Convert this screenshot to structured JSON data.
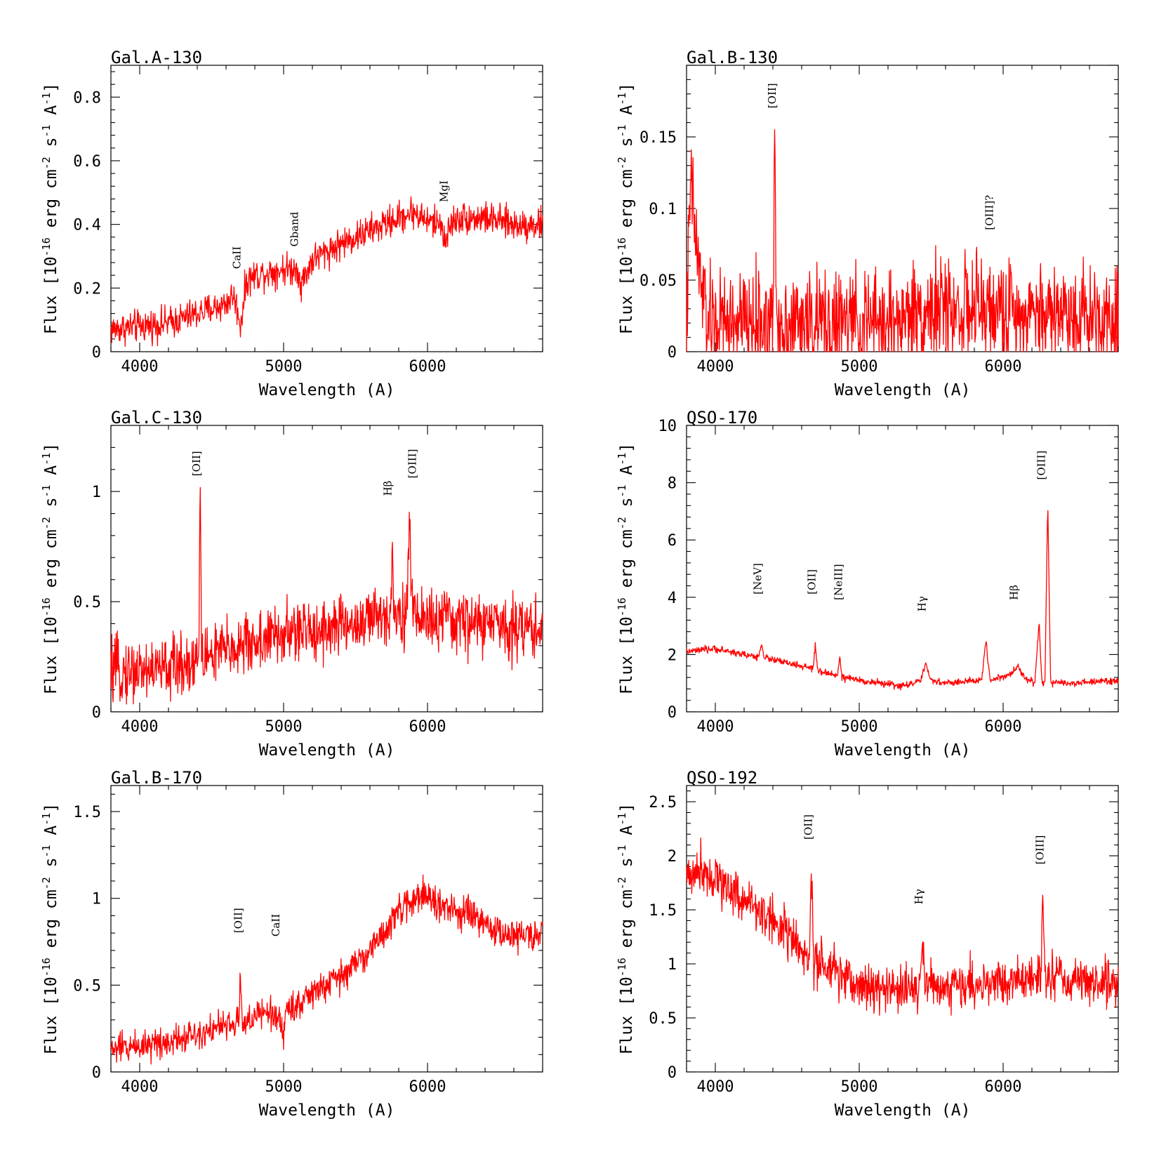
{
  "chart_data": [
    {
      "type": "line",
      "title": "Gal.A-130",
      "xlabel": "Wavelength (A)",
      "ylabel": "Flux [10^-16 erg cm^-2 s^-1 A^-1]",
      "xlim": [
        3800,
        6800
      ],
      "ylim": [
        0,
        0.9
      ],
      "xticks": [
        4000,
        5000,
        6000
      ],
      "xtick_labels": [
        "4000",
        "5000",
        "6000"
      ],
      "yticks": [
        0,
        0.2,
        0.4,
        0.6,
        0.8
      ],
      "ytick_labels": [
        "0",
        "0.2",
        "0.4",
        "0.6",
        "0.8"
      ],
      "noise": 0.025,
      "series": [
        {
          "color": "#ff0000",
          "x": [
            3800,
            4000,
            4200,
            4400,
            4600,
            4650,
            4690,
            4700,
            4740,
            4800,
            5000,
            5100,
            5120,
            5200,
            5400,
            5600,
            5800,
            5900,
            6000,
            6100,
            6130,
            6150,
            6200,
            6400,
            6600,
            6800
          ],
          "y": [
            0.07,
            0.08,
            0.09,
            0.12,
            0.15,
            0.18,
            0.11,
            0.08,
            0.22,
            0.24,
            0.26,
            0.26,
            0.21,
            0.29,
            0.34,
            0.38,
            0.42,
            0.44,
            0.41,
            0.4,
            0.34,
            0.39,
            0.42,
            0.42,
            0.4,
            0.4
          ]
        }
      ],
      "lines": [
        {
          "label": "CaII",
          "x": 4700,
          "y": 0.26
        },
        {
          "label": "Gband",
          "x": 5100,
          "y": 0.33
        },
        {
          "label": "MgI",
          "x": 6140,
          "y": 0.47
        }
      ]
    },
    {
      "type": "line",
      "title": "Gal.B-130",
      "xlabel": "Wavelength (A)",
      "ylabel": "Flux [10^-16 erg cm^-2 s^-1 A^-1]",
      "xlim": [
        3800,
        6800
      ],
      "ylim": [
        0,
        0.2
      ],
      "xticks": [
        4000,
        5000,
        6000
      ],
      "xtick_labels": [
        "4000",
        "5000",
        "6000"
      ],
      "yticks": [
        0,
        0.05,
        0.1,
        0.15
      ],
      "ytick_labels": [
        "0",
        "0.05",
        "0.1",
        "0.15"
      ],
      "noise": 0.018,
      "series": [
        {
          "color": "#ff0000",
          "x": [
            3800,
            3830,
            3880,
            3950,
            4200,
            4400,
            4415,
            4425,
            4440,
            4800,
            5200,
            5500,
            6000,
            6400,
            6800
          ],
          "y": [
            0.02,
            0.12,
            0.06,
            0.02,
            0.02,
            0.02,
            0.145,
            0.02,
            0.02,
            0.02,
            0.02,
            0.03,
            0.028,
            0.028,
            0.025
          ]
        }
      ],
      "lines": [
        {
          "label": "[OII]",
          "x": 4420,
          "y": 0.17
        },
        {
          "label": "[OIII]?",
          "x": 5930,
          "y": 0.085
        }
      ]
    },
    {
      "type": "line",
      "title": "Gal.C-130",
      "xlabel": "Wavelength (A)",
      "ylabel": "Flux [10^-16 erg cm^-2 s^-1 A^-1]",
      "xlim": [
        3800,
        6800
      ],
      "ylim": [
        0,
        1.3
      ],
      "xticks": [
        4000,
        5000,
        6000
      ],
      "xtick_labels": [
        "4000",
        "5000",
        "6000"
      ],
      "yticks": [
        0,
        0.5,
        1
      ],
      "ytick_labels": [
        "0",
        "0.5",
        "1"
      ],
      "noise": 0.07,
      "series": [
        {
          "color": "#ff0000",
          "x": [
            3800,
            4200,
            4410,
            4420,
            4430,
            4700,
            5000,
            5500,
            5740,
            5755,
            5770,
            5860,
            5875,
            5890,
            6000,
            6400,
            6800
          ],
          "y": [
            0.18,
            0.2,
            0.24,
            1.06,
            0.25,
            0.3,
            0.35,
            0.4,
            0.44,
            0.76,
            0.44,
            0.45,
            0.92,
            0.46,
            0.42,
            0.4,
            0.38
          ]
        }
      ],
      "lines": [
        {
          "label": "[OII]",
          "x": 4420,
          "y": 1.07
        },
        {
          "label": "Hβ",
          "x": 5750,
          "y": 0.98
        },
        {
          "label": "[OIII]",
          "x": 5920,
          "y": 1.06
        }
      ]
    },
    {
      "type": "line",
      "title": "QSO-170",
      "xlabel": "Wavelength (A)",
      "ylabel": "Flux [10^-16 erg cm^-2 s^-1 A^-1]",
      "xlim": [
        3800,
        6800
      ],
      "ylim": [
        0,
        10
      ],
      "xticks": [
        4000,
        5000,
        6000
      ],
      "xtick_labels": [
        "4000",
        "5000",
        "6000"
      ],
      "yticks": [
        0,
        2,
        4,
        6,
        8,
        10
      ],
      "ytick_labels": [
        "0",
        "2",
        "4",
        "6",
        "8",
        "10"
      ],
      "noise": 0.06,
      "series": [
        {
          "color": "#ff0000",
          "x": [
            3800,
            4000,
            4200,
            4300,
            4320,
            4340,
            4500,
            4680,
            4695,
            4710,
            4850,
            4865,
            4880,
            5000,
            5300,
            5430,
            5460,
            5500,
            5600,
            5850,
            5880,
            5910,
            6050,
            6100,
            6150,
            6220,
            6250,
            6270,
            6290,
            6310,
            6330,
            6500,
            6800
          ],
          "y": [
            2.1,
            2.2,
            2.0,
            1.9,
            2.4,
            1.9,
            1.7,
            1.5,
            2.4,
            1.4,
            1.3,
            1.9,
            1.2,
            1.1,
            0.9,
            1.1,
            1.65,
            1.1,
            1.0,
            1.1,
            2.5,
            1.1,
            1.3,
            1.6,
            1.2,
            1.0,
            3.1,
            1.0,
            1.0,
            7.3,
            1.0,
            1.0,
            1.1
          ]
        }
      ],
      "lines": [
        {
          "label": "[NeV]",
          "x": 4320,
          "y": 4.1
        },
        {
          "label": "[OII]",
          "x": 4695,
          "y": 4.1
        },
        {
          "label": "[NeIII]",
          "x": 4880,
          "y": 3.9
        },
        {
          "label": "Hγ",
          "x": 5460,
          "y": 3.5
        },
        {
          "label": "Hβ",
          "x": 6100,
          "y": 3.9
        },
        {
          "label": "[OIII]",
          "x": 6290,
          "y": 8.1
        }
      ]
    },
    {
      "type": "line",
      "title": "Gal.B-170",
      "xlabel": "Wavelength (A)",
      "ylabel": "Flux [10^-16 erg cm^-2 s^-1 A^-1]",
      "xlim": [
        3800,
        6800
      ],
      "ylim": [
        0,
        1.65
      ],
      "xticks": [
        4000,
        5000,
        6000
      ],
      "xtick_labels": [
        "4000",
        "5000",
        "6000"
      ],
      "yticks": [
        0,
        0.5,
        1,
        1.5
      ],
      "ytick_labels": [
        "0",
        "0.5",
        "1",
        "1.5"
      ],
      "noise": 0.045,
      "series": [
        {
          "color": "#ff0000",
          "x": [
            3800,
            4200,
            4500,
            4690,
            4700,
            4712,
            4900,
            4990,
            5000,
            5010,
            5200,
            5400,
            5600,
            5800,
            5950,
            6100,
            6300,
            6500,
            6800
          ],
          "y": [
            0.13,
            0.18,
            0.25,
            0.28,
            0.61,
            0.28,
            0.35,
            0.28,
            0.17,
            0.35,
            0.45,
            0.55,
            0.7,
            0.92,
            1.03,
            0.95,
            0.9,
            0.8,
            0.78
          ]
        }
      ],
      "lines": [
        {
          "label": "[OII]",
          "x": 4710,
          "y": 0.8
        },
        {
          "label": "CaII",
          "x": 4970,
          "y": 0.78
        }
      ]
    },
    {
      "type": "line",
      "title": "QSO-192",
      "xlabel": "Wavelength (A)",
      "ylabel": "Flux [10^-16 erg cm^-2 s^-1 A^-1]",
      "xlim": [
        3800,
        6800
      ],
      "ylim": [
        0,
        2.65
      ],
      "xticks": [
        4000,
        5000,
        6000
      ],
      "xtick_labels": [
        "4000",
        "5000",
        "6000"
      ],
      "yticks": [
        0,
        0.5,
        1,
        1.5,
        2,
        2.5
      ],
      "ytick_labels": [
        "0",
        "0.5",
        "1",
        "1.5",
        "2",
        "2.5"
      ],
      "noise": 0.11,
      "series": [
        {
          "color": "#ff0000",
          "x": [
            3800,
            3900,
            4200,
            4500,
            4650,
            4668,
            4685,
            5000,
            5300,
            5420,
            5440,
            5460,
            5700,
            6200,
            6260,
            6275,
            6290,
            6500,
            6800
          ],
          "y": [
            1.8,
            1.9,
            1.6,
            1.3,
            1.0,
            1.85,
            1.0,
            0.8,
            0.75,
            0.8,
            1.2,
            0.8,
            0.8,
            0.85,
            0.9,
            1.65,
            0.9,
            0.85,
            0.8
          ]
        }
      ],
      "lines": [
        {
          "label": "[OII]",
          "x": 4670,
          "y": 2.15
        },
        {
          "label": "Hγ",
          "x": 5440,
          "y": 1.55
        },
        {
          "label": "[OIII]",
          "x": 6280,
          "y": 1.92
        }
      ]
    }
  ]
}
